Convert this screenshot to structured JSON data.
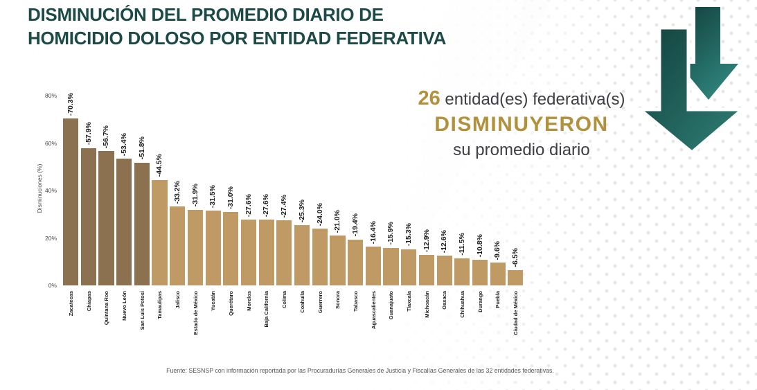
{
  "title": {
    "line1": "DISMINUCIÓN DEL PROMEDIO DIARIO DE",
    "line2": "HOMICIDIO DOLOSO POR ENTIDAD FEDERATIVA"
  },
  "callout": {
    "count": "26",
    "after_count": " entidad(es) federativa(s)",
    "emphasis": "DISMINUYERON",
    "tail": "su promedio diario"
  },
  "source": "Fuente: SESNSP con información reportada por las Procuradurías Generales de Justicia y Fiscalías Generales de las 32 entidades federativas.",
  "colors": {
    "title_teal": "#1C4A46",
    "gold": "#B2913C",
    "text_gray": "#3E3E44",
    "bar_dark": "#8C7150",
    "bar_light": "#BF9A64",
    "arrow_gradient_start": "#12403C",
    "arrow_gradient_end": "#2F8077",
    "dot_pattern": "#E3E3E3"
  },
  "chart_data": {
    "type": "bar",
    "title": "",
    "xlabel": "",
    "ylabel": "Disminuciones (%)",
    "ylim": [
      0,
      80
    ],
    "yticks": [
      0,
      20,
      40,
      60,
      80
    ],
    "ytick_labels": [
      "0%",
      "20%",
      "40%",
      "60%",
      "80%"
    ],
    "grid": false,
    "legend": false,
    "value_labels_rotated": true,
    "categories": [
      "Zacatecas",
      "Chiapas",
      "Quintana Roo",
      "Nuevo León",
      "San Luis Potosí",
      "Tamaulipas",
      "Jalisco",
      "Estado de México",
      "Yucatán",
      "Querétaro",
      "Morelos",
      "Baja California",
      "Colima",
      "Coahuila",
      "Guerrero",
      "Sonora",
      "Tabasco",
      "Aguascalientes",
      "Guanajuato",
      "Tlaxcala",
      "Michoacán",
      "Oaxaca",
      "Chihuahua",
      "Durango",
      "Puebla",
      "Ciudad de México"
    ],
    "values": [
      -70.3,
      -57.9,
      -56.7,
      -53.4,
      -51.8,
      -44.5,
      -33.2,
      -31.9,
      -31.5,
      -31.0,
      -27.6,
      -27.6,
      -27.4,
      -25.3,
      -24.0,
      -21.0,
      -19.4,
      -16.4,
      -15.9,
      -15.3,
      -12.9,
      -12.6,
      -11.5,
      -10.8,
      -9.6,
      -6.5
    ],
    "value_labels": [
      "-70.3%",
      "-57.9%",
      "-56.7%",
      "-53.4%",
      "-51.8%",
      "-44.5%",
      "-33.2%",
      "-31.9%",
      "-31.5%",
      "-31.0%",
      "-27.6%",
      "-27.6%",
      "-27.4%",
      "-25.3%",
      "-24.0%",
      "-21.0%",
      "-19.4%",
      "-16.4%",
      "-15.9%",
      "-15.3%",
      "-12.9%",
      "-12.6%",
      "-11.5%",
      "-10.8%",
      "-9.6%",
      "-6.5%"
    ],
    "dark_bar_count": 5
  }
}
